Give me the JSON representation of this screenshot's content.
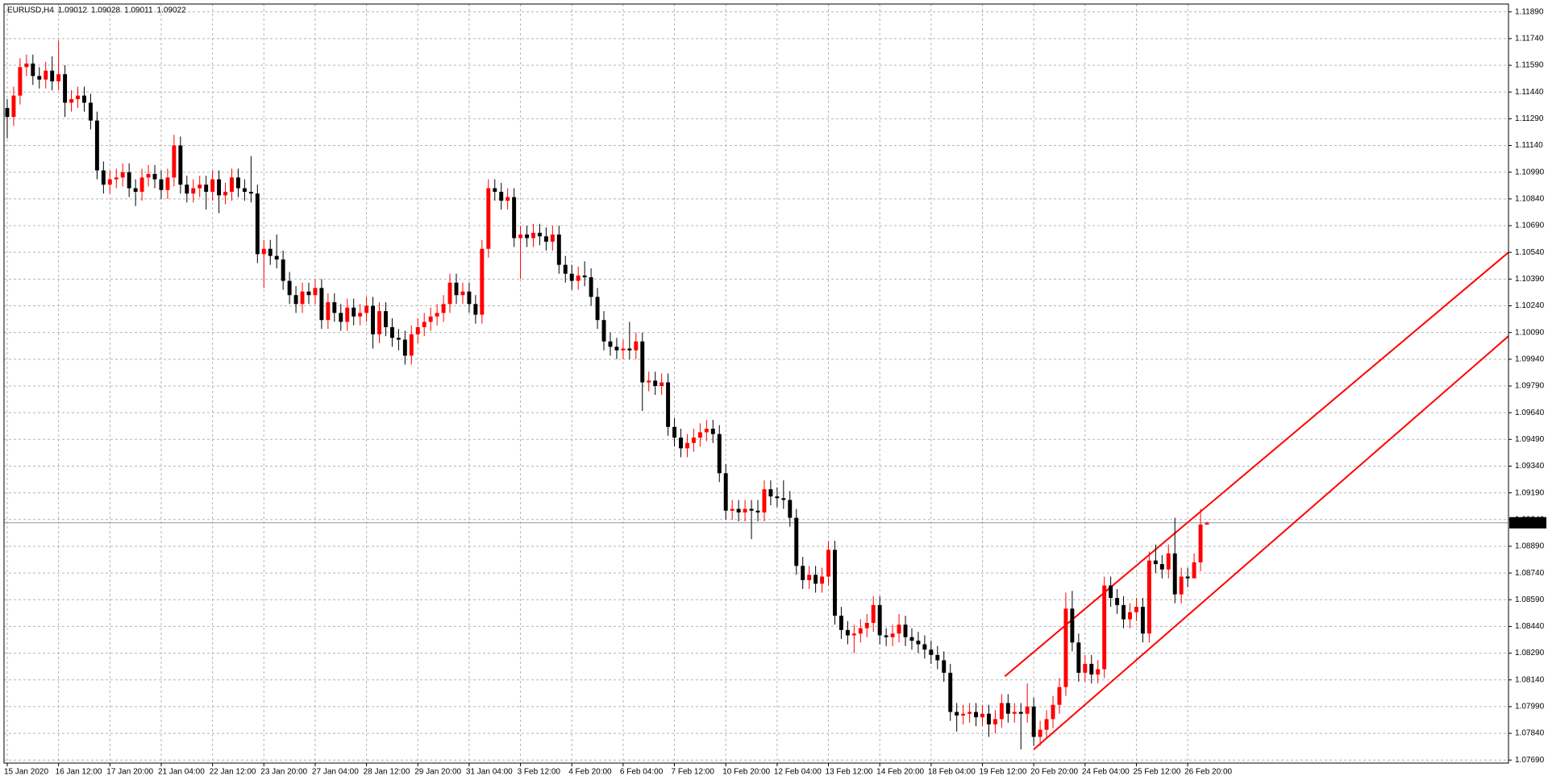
{
  "chart_data": {
    "type": "candlestick",
    "title": "EURUSD,H4",
    "categories": [
      "15 Jan 2020",
      null,
      null,
      null,
      null,
      null,
      null,
      null,
      "16 Jan 12:00",
      null,
      null,
      null,
      null,
      null,
      null,
      null,
      "17 Jan 20:00",
      null,
      null,
      null,
      null,
      null,
      null,
      null,
      "21 Jan 04:00",
      null,
      null,
      null,
      null,
      null,
      null,
      null,
      "22 Jan 12:00",
      null,
      null,
      null,
      null,
      null,
      null,
      null,
      "23 Jan 20:00",
      null,
      null,
      null,
      null,
      null,
      null,
      null,
      "27 Jan 04:00",
      null,
      null,
      null,
      null,
      null,
      null,
      null,
      "28 Jan 12:00",
      null,
      null,
      null,
      null,
      null,
      null,
      null,
      "29 Jan 20:00",
      null,
      null,
      null,
      null,
      null,
      null,
      null,
      "31 Jan 04:00",
      null,
      null,
      null,
      null,
      null,
      null,
      null,
      "3 Feb 12:00",
      null,
      null,
      null,
      null,
      null,
      null,
      null,
      "4 Feb 20:00",
      null,
      null,
      null,
      null,
      null,
      null,
      null,
      "6 Feb 04:00",
      null,
      null,
      null,
      null,
      null,
      null,
      null,
      "7 Feb 12:00",
      null,
      null,
      null,
      null,
      null,
      null,
      null,
      "10 Feb 20:00",
      null,
      null,
      null,
      null,
      null,
      null,
      null,
      "12 Feb 04:00",
      null,
      null,
      null,
      null,
      null,
      null,
      null,
      "13 Feb 12:00",
      null,
      null,
      null,
      null,
      null,
      null,
      null,
      "14 Feb 20:00",
      null,
      null,
      null,
      null,
      null,
      null,
      null,
      "18 Feb 04:00",
      null,
      null,
      null,
      null,
      null,
      null,
      null,
      "19 Feb 12:00",
      null,
      null,
      null,
      null,
      null,
      null,
      null,
      "20 Feb 20:00",
      null,
      null,
      null,
      null,
      null,
      null,
      null,
      "24 Feb 04:00",
      null,
      null,
      null,
      null,
      null,
      null,
      null,
      "25 Feb 12:00",
      null,
      null,
      null,
      null,
      null,
      null,
      null,
      "26 Feb 20:00",
      null,
      null,
      null
    ],
    "open": [
      1.1135,
      1.113,
      1.1142,
      1.1158,
      1.116,
      1.1153,
      1.1151,
      1.1156,
      1.115,
      1.1154,
      1.1138,
      1.114,
      1.1142,
      1.1138,
      1.1128,
      1.11,
      1.1092,
      1.1095,
      1.1096,
      1.1099,
      1.109,
      1.1088,
      1.1096,
      1.1098,
      1.1095,
      1.1089,
      1.1096,
      1.1114,
      1.1092,
      1.1087,
      1.109,
      1.1092,
      1.1088,
      1.1095,
      1.1086,
      1.1088,
      1.1096,
      1.109,
      1.1088,
      1.1087,
      1.1053,
      1.1056,
      1.1052,
      1.105,
      1.1038,
      1.103,
      1.1025,
      1.1032,
      1.103,
      1.1034,
      1.1016,
      1.1026,
      1.102,
      1.1015,
      1.1023,
      1.1018,
      1.102,
      1.1024,
      1.1008,
      1.1021,
      1.1012,
      1.1006,
      1.1005,
      1.0996,
      1.1008,
      1.1012,
      1.1015,
      1.1018,
      1.102,
      1.1025,
      1.1037,
      1.103,
      1.1032,
      1.1025,
      1.1019,
      1.1056,
      1.109,
      1.1088,
      1.1083,
      1.1085,
      1.1062,
      1.1064,
      1.1062,
      1.1065,
      1.1063,
      1.106,
      1.1064,
      1.1047,
      1.1042,
      1.1038,
      1.1041,
      1.104,
      1.1029,
      1.1016,
      1.1004,
      1.1001,
      1.0999,
      1.1,
      1.0999,
      1.1004,
      1.0981,
      1.0982,
      1.0979,
      1.0981,
      1.0956,
      1.095,
      1.0944,
      1.0947,
      1.095,
      1.0953,
      1.0955,
      1.0952,
      1.093,
      1.0909,
      1.091,
      1.0908,
      1.091,
      1.0909,
      1.0908,
      1.0921,
      1.0917,
      1.0916,
      1.0915,
      1.0905,
      1.0878,
      1.087,
      1.0873,
      1.0868,
      1.0872,
      1.0887,
      1.085,
      1.0842,
      1.0839,
      1.084,
      1.0843,
      1.0846,
      1.0856,
      1.0839,
      1.0838,
      1.084,
      1.0845,
      1.0838,
      1.0836,
      1.0834,
      1.0831,
      1.0828,
      1.0825,
      1.0818,
      1.0796,
      1.0794,
      1.0795,
      1.0796,
      1.0793,
      1.0795,
      1.0789,
      1.0792,
      1.0801,
      1.0795,
      1.0796,
      1.0795,
      1.0799,
      1.0782,
      1.0786,
      1.0792,
      1.08,
      1.081,
      1.0854,
      1.0835,
      1.0818,
      1.0823,
      1.0817,
      1.082,
      1.0867,
      1.086,
      1.0856,
      1.0848,
      1.0852,
      1.0855,
      1.084,
      1.0881,
      1.0879,
      1.0876,
      1.0885,
      1.0862,
      1.0872,
      1.0871,
      1.088,
      1.09012
    ],
    "high": [
      1.114,
      1.1147,
      1.1163,
      1.1165,
      1.1165,
      1.1158,
      1.1161,
      1.1164,
      1.1173,
      1.1159,
      1.1145,
      1.1147,
      1.1147,
      1.1143,
      1.1133,
      1.1105,
      1.11,
      1.1101,
      1.1104,
      1.1104,
      1.1095,
      1.1101,
      1.1103,
      1.1103,
      1.11,
      1.1101,
      1.112,
      1.1119,
      1.1097,
      1.1095,
      1.1097,
      1.1097,
      1.11,
      1.11,
      1.1093,
      1.1101,
      1.1101,
      1.1095,
      1.1108,
      1.1092,
      1.1061,
      1.1061,
      1.1064,
      1.1055,
      1.1043,
      1.1035,
      1.1037,
      1.1037,
      1.1039,
      1.1039,
      1.1031,
      1.1031,
      1.1025,
      1.1028,
      1.1028,
      1.1025,
      1.1029,
      1.1029,
      1.1026,
      1.1026,
      1.1017,
      1.1011,
      1.101,
      1.1013,
      1.1017,
      1.102,
      1.1023,
      1.1025,
      1.103,
      1.1042,
      1.1042,
      1.1037,
      1.1037,
      1.103,
      1.1061,
      1.1095,
      1.1095,
      1.1093,
      1.109,
      1.109,
      1.1069,
      1.1069,
      1.107,
      1.107,
      1.1068,
      1.1069,
      1.1069,
      1.1052,
      1.1047,
      1.1046,
      1.1049,
      1.1045,
      1.1034,
      1.1021,
      1.1009,
      1.1006,
      1.1005,
      1.1015,
      1.1009,
      1.1009,
      1.0987,
      1.0987,
      1.0986,
      1.0986,
      1.0961,
      1.0955,
      1.0952,
      1.0955,
      1.0958,
      1.096,
      1.096,
      1.0957,
      1.0935,
      1.0915,
      1.0915,
      1.0915,
      1.0915,
      1.0915,
      1.0926,
      1.0926,
      1.0922,
      1.0926,
      1.092,
      1.091,
      1.0883,
      1.0878,
      1.0878,
      1.0877,
      1.0892,
      1.0892,
      1.0855,
      1.0847,
      1.0845,
      1.0848,
      1.0851,
      1.0861,
      1.0861,
      1.0843,
      1.0845,
      1.0851,
      1.085,
      1.0843,
      1.0841,
      1.0839,
      1.0836,
      1.0833,
      1.083,
      1.0823,
      1.0801,
      1.08,
      1.0801,
      1.0801,
      1.08,
      1.08,
      1.0797,
      1.0806,
      1.0806,
      1.0801,
      1.0801,
      1.0812,
      1.0804,
      1.0791,
      1.0797,
      1.0805,
      1.0815,
      1.0863,
      1.0864,
      1.084,
      1.0828,
      1.0828,
      1.0825,
      1.0872,
      1.0872,
      1.0865,
      1.0861,
      1.0857,
      1.086,
      1.086,
      1.0886,
      1.089,
      1.0884,
      1.089,
      1.0905,
      1.0877,
      1.0877,
      1.0885,
      1.091,
      1.09028
    ],
    "low": [
      1.1118,
      1.1125,
      1.1137,
      1.1153,
      1.1148,
      1.1146,
      1.1146,
      1.1145,
      1.1145,
      1.113,
      1.1133,
      1.1135,
      1.1133,
      1.1123,
      1.1095,
      1.1087,
      1.1087,
      1.109,
      1.1091,
      1.1085,
      1.108,
      1.1083,
      1.1091,
      1.109,
      1.1084,
      1.1084,
      1.1091,
      1.1087,
      1.1082,
      1.1082,
      1.1085,
      1.1078,
      1.1083,
      1.1076,
      1.1081,
      1.1083,
      1.1085,
      1.1083,
      1.1082,
      1.1048,
      1.1034,
      1.1047,
      1.1045,
      1.1033,
      1.1025,
      1.102,
      1.102,
      1.1025,
      1.1025,
      1.1011,
      1.1011,
      1.1015,
      1.101,
      1.101,
      1.1013,
      1.1013,
      1.1015,
      1.1,
      1.1003,
      1.1007,
      1.1001,
      1.0999,
      1.0991,
      1.0991,
      1.1003,
      1.1007,
      1.101,
      1.1013,
      1.1015,
      1.102,
      1.1025,
      1.1025,
      1.102,
      1.1014,
      1.1014,
      1.1051,
      1.1083,
      1.1078,
      1.1078,
      1.1057,
      1.1039,
      1.1057,
      1.1057,
      1.1058,
      1.1055,
      1.1055,
      1.1042,
      1.1037,
      1.1033,
      1.1033,
      1.1035,
      1.1024,
      1.1011,
      1.0999,
      1.0996,
      1.0994,
      1.0994,
      1.0994,
      1.0994,
      1.0965,
      1.0976,
      1.0974,
      1.0974,
      1.0951,
      1.0945,
      1.0939,
      1.0939,
      1.0942,
      1.0945,
      1.0948,
      1.0947,
      1.0925,
      1.0904,
      1.0904,
      1.0903,
      1.0903,
      1.0893,
      1.0903,
      1.0903,
      1.0912,
      1.0911,
      1.091,
      1.09,
      1.0873,
      1.0865,
      1.0865,
      1.0863,
      1.0863,
      1.0867,
      1.0845,
      1.0837,
      1.0834,
      1.0829,
      1.0835,
      1.0838,
      1.0841,
      1.0834,
      1.0833,
      1.0833,
      1.0835,
      1.0833,
      1.0831,
      1.0829,
      1.0826,
      1.0823,
      1.082,
      1.0813,
      1.0791,
      1.0785,
      1.0789,
      1.079,
      1.0788,
      1.0788,
      1.0782,
      1.0784,
      1.0787,
      1.079,
      1.079,
      1.0775,
      1.079,
      1.0777,
      1.0777,
      1.0781,
      1.0787,
      1.0795,
      1.0805,
      1.083,
      1.0813,
      1.0813,
      1.0812,
      1.0812,
      1.0815,
      1.0855,
      1.0851,
      1.0843,
      1.0843,
      1.0847,
      1.0835,
      1.0835,
      1.0874,
      1.0871,
      1.0871,
      1.0857,
      1.0857,
      1.0866,
      1.0875,
      1.0875,
      1.09011
    ],
    "close": [
      1.113,
      1.1142,
      1.1158,
      1.116,
      1.1153,
      1.1151,
      1.1156,
      1.115,
      1.1154,
      1.1138,
      1.114,
      1.1142,
      1.1138,
      1.1128,
      1.11,
      1.1092,
      1.1095,
      1.1096,
      1.1099,
      1.109,
      1.1088,
      1.1096,
      1.1098,
      1.1095,
      1.1089,
      1.1096,
      1.1114,
      1.1092,
      1.1087,
      1.109,
      1.1092,
      1.1088,
      1.1095,
      1.1086,
      1.1088,
      1.1096,
      1.109,
      1.1088,
      1.1087,
      1.1053,
      1.1056,
      1.1052,
      1.105,
      1.1038,
      1.103,
      1.1025,
      1.1032,
      1.103,
      1.1034,
      1.1016,
      1.1026,
      1.102,
      1.1015,
      1.1023,
      1.1018,
      1.102,
      1.1024,
      1.1008,
      1.1021,
      1.1012,
      1.1006,
      1.1005,
      1.0996,
      1.1008,
      1.1012,
      1.1015,
      1.1018,
      1.102,
      1.1025,
      1.1037,
      1.103,
      1.1032,
      1.1025,
      1.1019,
      1.1056,
      1.109,
      1.1088,
      1.1083,
      1.1085,
      1.1062,
      1.1064,
      1.1062,
      1.1065,
      1.1063,
      1.106,
      1.1064,
      1.1047,
      1.1042,
      1.1038,
      1.1041,
      1.104,
      1.1029,
      1.1016,
      1.1004,
      1.1001,
      1.0999,
      1.1,
      1.0999,
      1.1004,
      1.0981,
      1.0982,
      1.0979,
      1.0981,
      1.0956,
      1.095,
      1.0944,
      1.0947,
      1.095,
      1.0953,
      1.0955,
      1.0952,
      1.093,
      1.0909,
      1.091,
      1.0908,
      1.091,
      1.0909,
      1.0908,
      1.0921,
      1.0917,
      1.0916,
      1.0915,
      1.0905,
      1.0878,
      1.087,
      1.0873,
      1.0868,
      1.0872,
      1.0887,
      1.085,
      1.0842,
      1.0839,
      1.084,
      1.0843,
      1.0846,
      1.0856,
      1.0839,
      1.0838,
      1.084,
      1.0845,
      1.0838,
      1.0836,
      1.0834,
      1.0831,
      1.0828,
      1.0825,
      1.0818,
      1.0796,
      1.0794,
      1.0795,
      1.0796,
      1.0793,
      1.0795,
      1.0789,
      1.0792,
      1.0801,
      1.0795,
      1.0796,
      1.0795,
      1.0799,
      1.0782,
      1.0786,
      1.0792,
      1.08,
      1.081,
      1.0854,
      1.0835,
      1.0818,
      1.0823,
      1.0817,
      1.082,
      1.0867,
      1.086,
      1.0856,
      1.0848,
      1.0852,
      1.0855,
      1.084,
      1.0881,
      1.0879,
      1.0876,
      1.0885,
      1.0862,
      1.0872,
      1.0871,
      1.088,
      1.09012,
      1.09022
    ],
    "up_color": "#ff0000",
    "down_color": "#000000",
    "xlim": [
      -0.5,
      234
    ],
    "ylim": [
      1.07673,
      1.11934
    ],
    "yticks": [
      {
        "value": 1.1189,
        "label": "1.11890"
      },
      {
        "value": 1.1174,
        "label": "1.11740"
      },
      {
        "value": 1.1159,
        "label": "1.11590"
      },
      {
        "value": 1.1144,
        "label": "1.11440"
      },
      {
        "value": 1.1129,
        "label": "1.11290"
      },
      {
        "value": 1.1114,
        "label": "1.11140"
      },
      {
        "value": 1.1099,
        "label": "1.10990"
      },
      {
        "value": 1.1084,
        "label": "1.10840"
      },
      {
        "value": 1.1069,
        "label": "1.10690"
      },
      {
        "value": 1.1054,
        "label": "1.10540"
      },
      {
        "value": 1.1039,
        "label": "1.10390"
      },
      {
        "value": 1.1024,
        "label": "1.10240"
      },
      {
        "value": 1.1009,
        "label": "1.10090"
      },
      {
        "value": 1.0994,
        "label": "1.09940"
      },
      {
        "value": 1.0979,
        "label": "1.09790"
      },
      {
        "value": 1.0964,
        "label": "1.09640"
      },
      {
        "value": 1.0949,
        "label": "1.09490"
      },
      {
        "value": 1.0934,
        "label": "1.09340"
      },
      {
        "value": 1.0919,
        "label": "1.09190"
      },
      {
        "value": 1.0904,
        "label": "1.09040"
      },
      {
        "value": 1.0889,
        "label": "1.08890"
      },
      {
        "value": 1.0874,
        "label": "1.08740"
      },
      {
        "value": 1.0859,
        "label": "1.08590"
      },
      {
        "value": 1.0844,
        "label": "1.08440"
      },
      {
        "value": 1.0829,
        "label": "1.08290"
      },
      {
        "value": 1.0814,
        "label": "1.08140"
      },
      {
        "value": 1.0799,
        "label": "1.07990"
      },
      {
        "value": 1.0784,
        "label": "1.07840"
      },
      {
        "value": 1.0769,
        "label": "1.07690"
      }
    ],
    "grid": true,
    "trendlines": [
      {
        "color": "#ff0000",
        "x": [
          155.5,
          234
        ],
        "y": [
          1.0816,
          1.1054
        ]
      },
      {
        "color": "#ff0000",
        "x": [
          160,
          234
        ],
        "y": [
          1.0775,
          1.1007
        ]
      }
    ]
  }
}
